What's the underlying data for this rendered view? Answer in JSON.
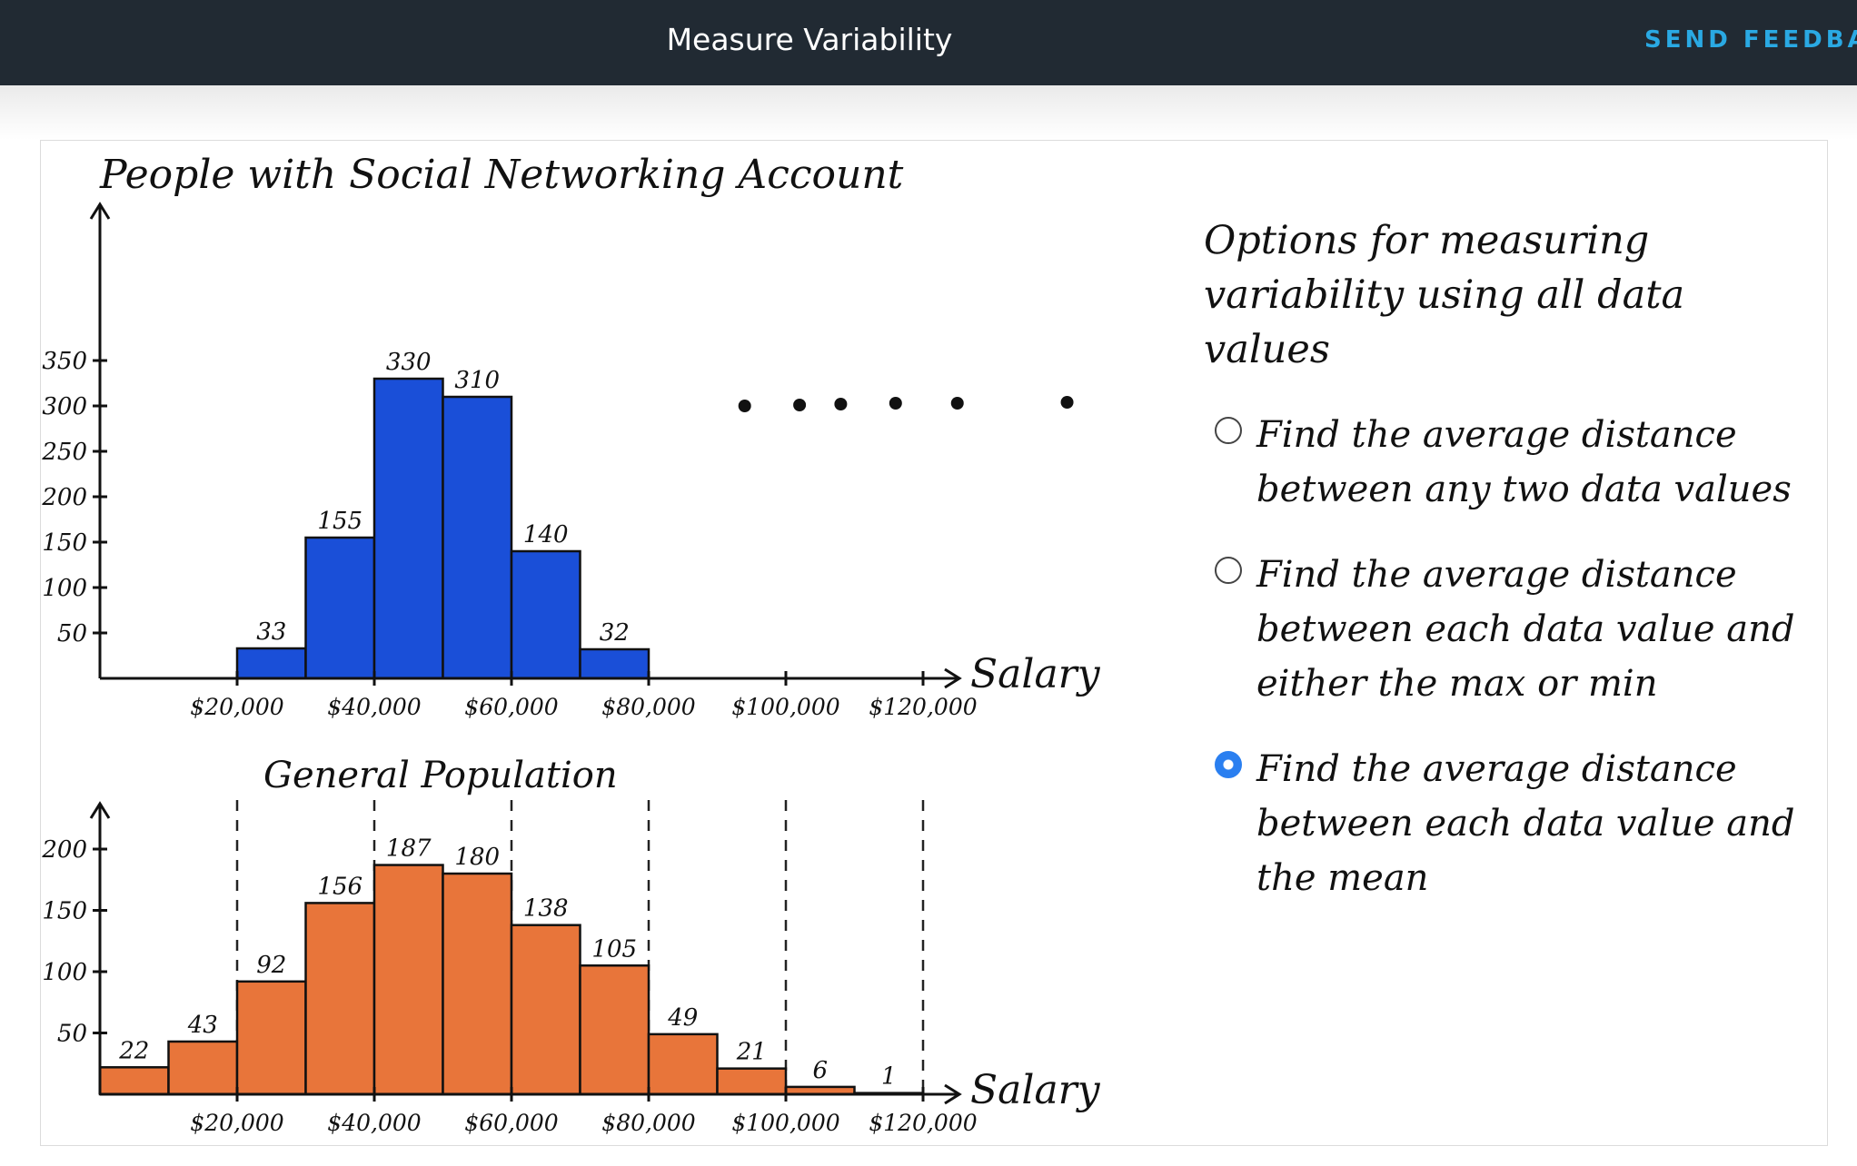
{
  "header": {
    "title": "Measure Variability",
    "feedback_label": "SEND FEEDBACK"
  },
  "colors": {
    "header_bg": "#212a33",
    "feedback": "#2aa9e3",
    "social_bars": "#1a4fd8",
    "population_bars": "#e8753a",
    "radio_selected": "#2a7ff0"
  },
  "chart_data": [
    {
      "type": "bar",
      "title": "People with Social Networking Account",
      "xlabel": "Salary",
      "x_ticks": [
        "$20,000",
        "$40,000",
        "$60,000",
        "$80,000",
        "$100,000",
        "$120,000"
      ],
      "y_ticks": [
        "350",
        "300",
        "250",
        "200",
        "150",
        "100",
        "50"
      ],
      "ylim": [
        0,
        350
      ],
      "bins": [
        {
          "from": 20000,
          "to": 30000,
          "value": 33,
          "label": "33"
        },
        {
          "from": 30000,
          "to": 40000,
          "value": 155,
          "label": "155"
        },
        {
          "from": 40000,
          "to": 50000,
          "value": 330,
          "label": "330"
        },
        {
          "from": 50000,
          "to": 60000,
          "value": 310,
          "label": "310"
        },
        {
          "from": 60000,
          "to": 70000,
          "value": 140,
          "label": "140"
        },
        {
          "from": 70000,
          "to": 80000,
          "value": 32,
          "label": "32"
        }
      ],
      "dots": [
        {
          "x": 94000,
          "value": 300
        },
        {
          "x": 102000,
          "value": 301
        },
        {
          "x": 108000,
          "value": 302
        },
        {
          "x": 116000,
          "value": 303
        },
        {
          "x": 125000,
          "value": 303
        },
        {
          "x": 141000,
          "value": 304
        }
      ]
    },
    {
      "type": "bar",
      "title": "General Population",
      "xlabel": "Salary",
      "x_ticks": [
        "$20,000",
        "$40,000",
        "$60,000",
        "$80,000",
        "$100,000",
        "$120,000"
      ],
      "y_ticks": [
        "200",
        "150",
        "100",
        "50"
      ],
      "ylim": [
        0,
        200
      ],
      "bins": [
        {
          "from": 0,
          "to": 10000,
          "value": 22,
          "label": "22"
        },
        {
          "from": 10000,
          "to": 20000,
          "value": 43,
          "label": "43"
        },
        {
          "from": 20000,
          "to": 30000,
          "value": 92,
          "label": "92"
        },
        {
          "from": 30000,
          "to": 40000,
          "value": 156,
          "label": "156"
        },
        {
          "from": 40000,
          "to": 50000,
          "value": 187,
          "label": "187"
        },
        {
          "from": 50000,
          "to": 60000,
          "value": 180,
          "label": "180"
        },
        {
          "from": 60000,
          "to": 70000,
          "value": 138,
          "label": "138"
        },
        {
          "from": 70000,
          "to": 80000,
          "value": 105,
          "label": "105"
        },
        {
          "from": 80000,
          "to": 90000,
          "value": 49,
          "label": "49"
        },
        {
          "from": 90000,
          "to": 100000,
          "value": 21,
          "label": "21"
        },
        {
          "from": 100000,
          "to": 110000,
          "value": 6,
          "label": "6"
        },
        {
          "from": 110000,
          "to": 120000,
          "value": 1,
          "label": "1"
        }
      ],
      "dashed_lines_at": [
        20000,
        40000,
        60000,
        80000,
        100000,
        120000
      ]
    }
  ],
  "question": {
    "heading": "Options for measuring variability using all data values",
    "options": [
      {
        "label": "Find the average distance between any two data values",
        "selected": false
      },
      {
        "label": "Find the average distance between each data value and either the max or min",
        "selected": false
      },
      {
        "label": "Find the average distance between each data value and the mean",
        "selected": true
      }
    ]
  }
}
